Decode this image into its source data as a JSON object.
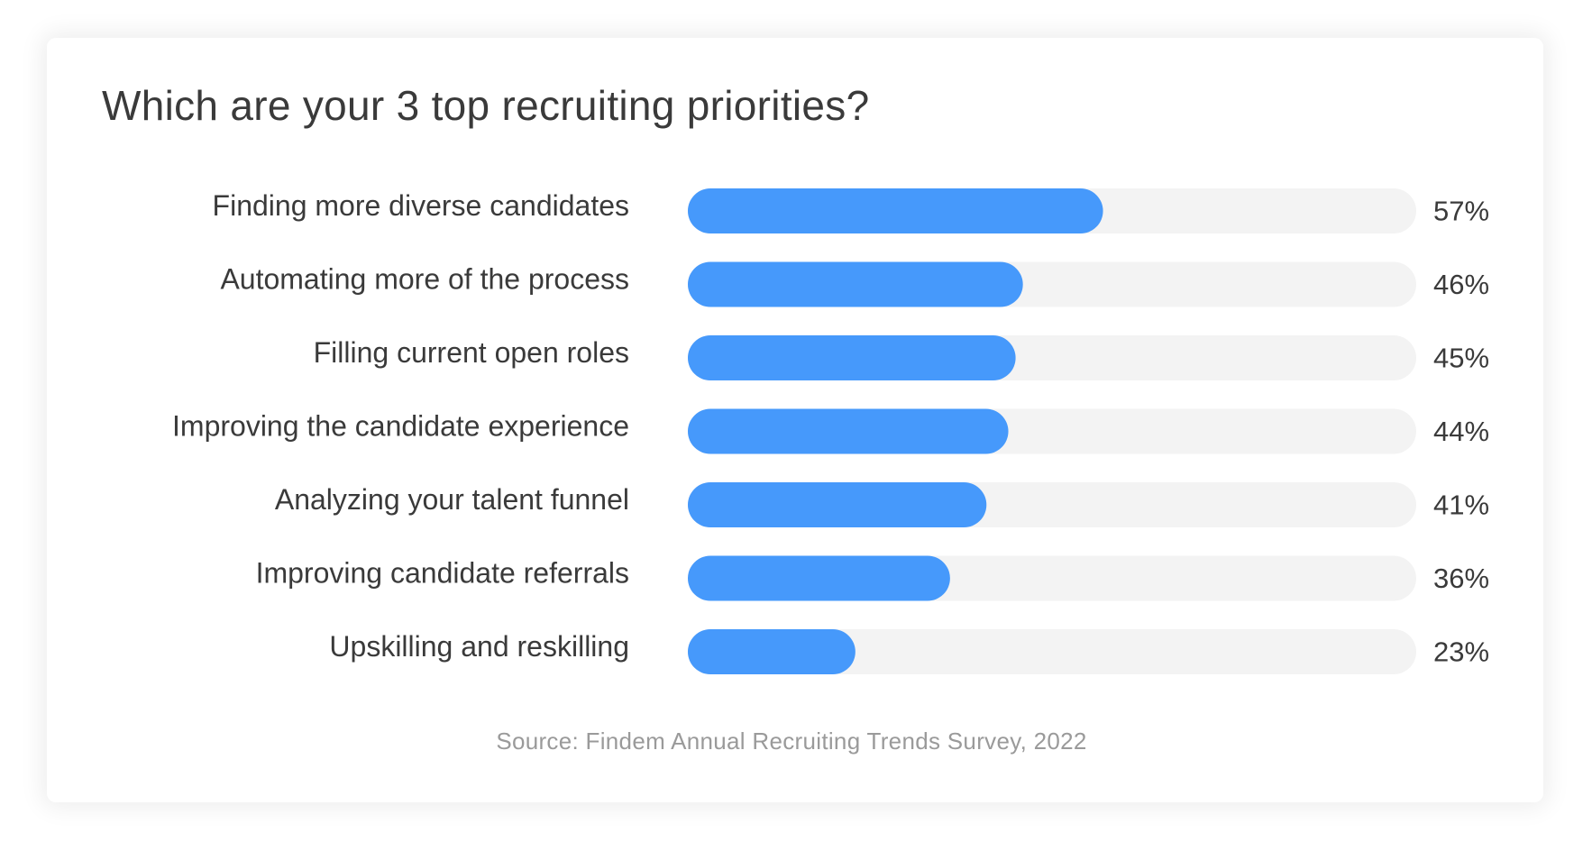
{
  "chart_data": {
    "type": "bar",
    "orientation": "horizontal",
    "title": "Which are your 3 top recruiting priorities?",
    "categories": [
      "Finding more diverse candidates",
      "Automating more of the process",
      "Filling current open roles",
      "Improving the candidate experience",
      "Analyzing your talent funnel",
      "Improving candidate referrals",
      "Upskilling and reskilling"
    ],
    "values": [
      57,
      46,
      45,
      44,
      41,
      36,
      23
    ],
    "value_labels": [
      "57%",
      "46%",
      "45%",
      "44%",
      "41%",
      "36%",
      "23%"
    ],
    "xlim": [
      0,
      100
    ],
    "unit": "%",
    "grid": false,
    "legend": "none",
    "source": "Source: Findem Annual Recruiting Trends Survey, 2022"
  },
  "colors": {
    "bar": "#4699fb",
    "track": "#f3f3f3",
    "text": "#3a3a3a",
    "source_text": "#9a9a9a"
  }
}
